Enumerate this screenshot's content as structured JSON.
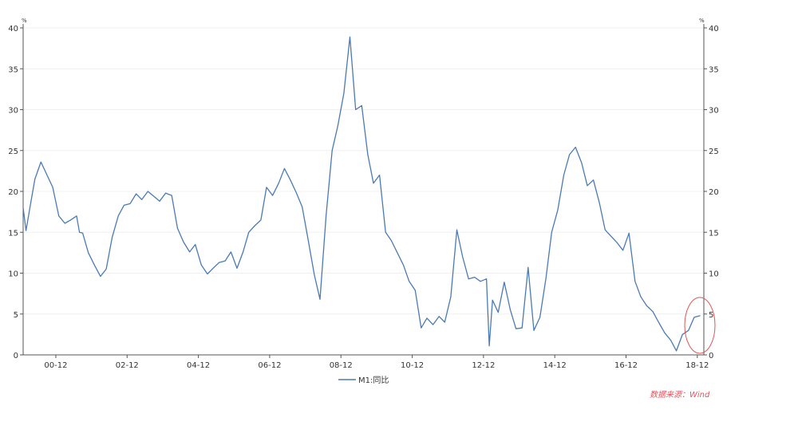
{
  "chart_data": {
    "type": "line",
    "unit_left": "%",
    "unit_right": "%",
    "ylim": [
      0,
      40
    ],
    "y_ticks": [
      0,
      5,
      10,
      15,
      20,
      25,
      30,
      35,
      40
    ],
    "x_ticks": [
      "00-12",
      "02-12",
      "04-12",
      "06-12",
      "08-12",
      "10-12",
      "12-12",
      "14-12",
      "16-12",
      "18-12"
    ],
    "x_tick_positions": [
      2000.917,
      2002.917,
      2004.917,
      2006.917,
      2008.917,
      2010.917,
      2012.917,
      2014.917,
      2016.917,
      2018.917
    ],
    "xlim": [
      2000.0,
      2019.1
    ],
    "legend_position": "bottom-center",
    "series": [
      {
        "name": "M1:同比",
        "color": "#4a7ab5",
        "x": [
          2000.0,
          2000.08,
          2000.17,
          2000.33,
          2000.5,
          2000.67,
          2000.83,
          2001.0,
          2001.17,
          2001.33,
          2001.5,
          2001.58,
          2001.67,
          2001.83,
          2002.0,
          2002.17,
          2002.33,
          2002.5,
          2002.67,
          2002.83,
          2003.0,
          2003.17,
          2003.33,
          2003.5,
          2003.67,
          2003.83,
          2004.0,
          2004.17,
          2004.33,
          2004.5,
          2004.67,
          2004.83,
          2005.0,
          2005.17,
          2005.33,
          2005.5,
          2005.67,
          2005.83,
          2006.0,
          2006.17,
          2006.33,
          2006.5,
          2006.67,
          2006.83,
          2007.0,
          2007.17,
          2007.33,
          2007.5,
          2007.67,
          2007.83,
          2008.0,
          2008.17,
          2008.33,
          2008.5,
          2008.67,
          2008.83,
          2009.0,
          2009.17,
          2009.33,
          2009.5,
          2009.67,
          2009.83,
          2010.0,
          2010.17,
          2010.33,
          2010.5,
          2010.67,
          2010.83,
          2011.0,
          2011.17,
          2011.33,
          2011.5,
          2011.67,
          2011.83,
          2012.0,
          2012.17,
          2012.33,
          2012.5,
          2012.67,
          2012.83,
          2013.0,
          2013.08,
          2013.17,
          2013.33,
          2013.5,
          2013.67,
          2013.83,
          2014.0,
          2014.17,
          2014.33,
          2014.5,
          2014.67,
          2014.83,
          2015.0,
          2015.17,
          2015.33,
          2015.5,
          2015.67,
          2015.83,
          2016.0,
          2016.17,
          2016.33,
          2016.5,
          2016.67,
          2016.83,
          2017.0,
          2017.17,
          2017.33,
          2017.5,
          2017.67,
          2017.83,
          2018.0,
          2018.17,
          2018.33,
          2018.5,
          2018.67,
          2018.83,
          2019.0
        ],
        "values": [
          18.0,
          15.2,
          17.5,
          21.5,
          23.6,
          22.0,
          20.5,
          17.0,
          16.1,
          16.5,
          17.0,
          15.0,
          14.9,
          12.5,
          11.0,
          9.6,
          10.5,
          14.4,
          17.0,
          18.3,
          18.5,
          19.7,
          19.0,
          20.0,
          19.4,
          18.8,
          19.8,
          19.5,
          15.5,
          13.8,
          12.6,
          13.5,
          11.0,
          9.9,
          10.6,
          11.3,
          11.5,
          12.6,
          10.6,
          12.6,
          15.0,
          15.8,
          16.5,
          20.5,
          19.5,
          21.0,
          22.8,
          21.4,
          19.8,
          18.1,
          14.0,
          9.8,
          6.8,
          17.0,
          25.0,
          28.0,
          32.0,
          38.9,
          30.0,
          30.5,
          24.5,
          21.0,
          22.0,
          15.0,
          14.0,
          12.5,
          11.0,
          9.0,
          7.9,
          3.3,
          4.5,
          3.7,
          4.7,
          4.0,
          7.1,
          15.3,
          12.0,
          9.3,
          9.5,
          9.0,
          9.3,
          1.1,
          6.7,
          5.2,
          8.9,
          5.5,
          3.2,
          3.3,
          10.7,
          3.0,
          4.6,
          9.4,
          15.0,
          17.7,
          22.0,
          24.5,
          25.4,
          23.5,
          20.7,
          21.4,
          18.6,
          15.3,
          14.5,
          13.7,
          12.8,
          14.9,
          9.0,
          7.1,
          6.0,
          5.3,
          4.0,
          2.7,
          1.8,
          0.5,
          2.5,
          3.0,
          4.6,
          4.8
        ]
      }
    ]
  },
  "source_note": "数据来源：Wind"
}
